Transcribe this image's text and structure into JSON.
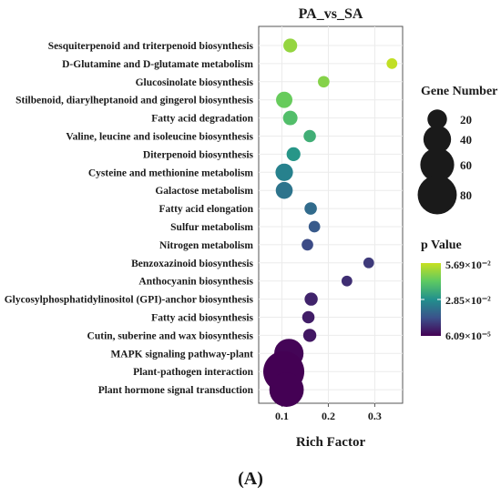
{
  "chart_data": {
    "type": "scatter",
    "title": "PA_vs_SA",
    "xlabel": "Rich Factor",
    "xticks": [
      0.1,
      0.2,
      0.3
    ],
    "xlim": [
      0.05,
      0.36
    ],
    "categories": [
      "Sesquiterpenoid and triterpenoid biosynthesis",
      "D-Glutamine and D-glutamate metabolism",
      "Glucosinolate biosynthesis",
      "Stilbenoid, diarylheptanoid and gingerol biosynthesis",
      "Fatty acid degradation",
      "Valine, leucine and isoleucine biosynthesis",
      "Diterpenoid biosynthesis",
      "Cysteine and methionine metabolism",
      "Galactose metabolism",
      "Fatty acid elongation",
      "Sulfur metabolism",
      "Nitrogen metabolism",
      "Benzoxazinoid biosynthesis",
      "Anthocyanin biosynthesis",
      "Glycosylphosphatidylinositol (GPI)-anchor biosynthesis",
      "Fatty acid biosynthesis",
      "Cutin, suberine and wax biosynthesis",
      "MAPK signaling pathway-plant",
      "Plant-pathogen interaction",
      "Plant hormone signal transduction"
    ],
    "points": [
      {
        "x": 0.118,
        "gene_number": 10,
        "p_value": 0.05
      },
      {
        "x": 0.337,
        "gene_number": 6,
        "p_value": 0.056
      },
      {
        "x": 0.19,
        "gene_number": 7,
        "p_value": 0.048
      },
      {
        "x": 0.105,
        "gene_number": 14,
        "p_value": 0.044
      },
      {
        "x": 0.118,
        "gene_number": 11,
        "p_value": 0.04
      },
      {
        "x": 0.16,
        "gene_number": 8,
        "p_value": 0.036
      },
      {
        "x": 0.125,
        "gene_number": 10,
        "p_value": 0.03
      },
      {
        "x": 0.105,
        "gene_number": 16,
        "p_value": 0.025
      },
      {
        "x": 0.105,
        "gene_number": 15,
        "p_value": 0.022
      },
      {
        "x": 0.162,
        "gene_number": 8,
        "p_value": 0.02
      },
      {
        "x": 0.17,
        "gene_number": 7,
        "p_value": 0.016
      },
      {
        "x": 0.155,
        "gene_number": 7,
        "p_value": 0.013
      },
      {
        "x": 0.287,
        "gene_number": 6,
        "p_value": 0.01
      },
      {
        "x": 0.24,
        "gene_number": 6,
        "p_value": 0.008
      },
      {
        "x": 0.163,
        "gene_number": 9,
        "p_value": 0.006
      },
      {
        "x": 0.157,
        "gene_number": 8,
        "p_value": 0.005
      },
      {
        "x": 0.16,
        "gene_number": 9,
        "p_value": 0.004
      },
      {
        "x": 0.115,
        "gene_number": 45,
        "p_value": 0.0008
      },
      {
        "x": 0.104,
        "gene_number": 88,
        "p_value": 0.0001
      },
      {
        "x": 0.11,
        "gene_number": 62,
        "p_value": 6e-05
      }
    ],
    "size_legend": {
      "title": "Gene Number",
      "values": [
        20,
        40,
        60,
        80
      ]
    },
    "color_legend": {
      "title": "p Value",
      "max_label": "5.69×10⁻²",
      "mid_label": "2.85×10⁻²",
      "min_label": "6.09×10⁻⁵",
      "min": 6.09e-05,
      "max": 0.0569,
      "colors": [
        "#440154",
        "#3b528b",
        "#21908d",
        "#5dc962",
        "#c8e020"
      ]
    },
    "grid": true,
    "legend_position": "right"
  },
  "figure_label": "(A)"
}
